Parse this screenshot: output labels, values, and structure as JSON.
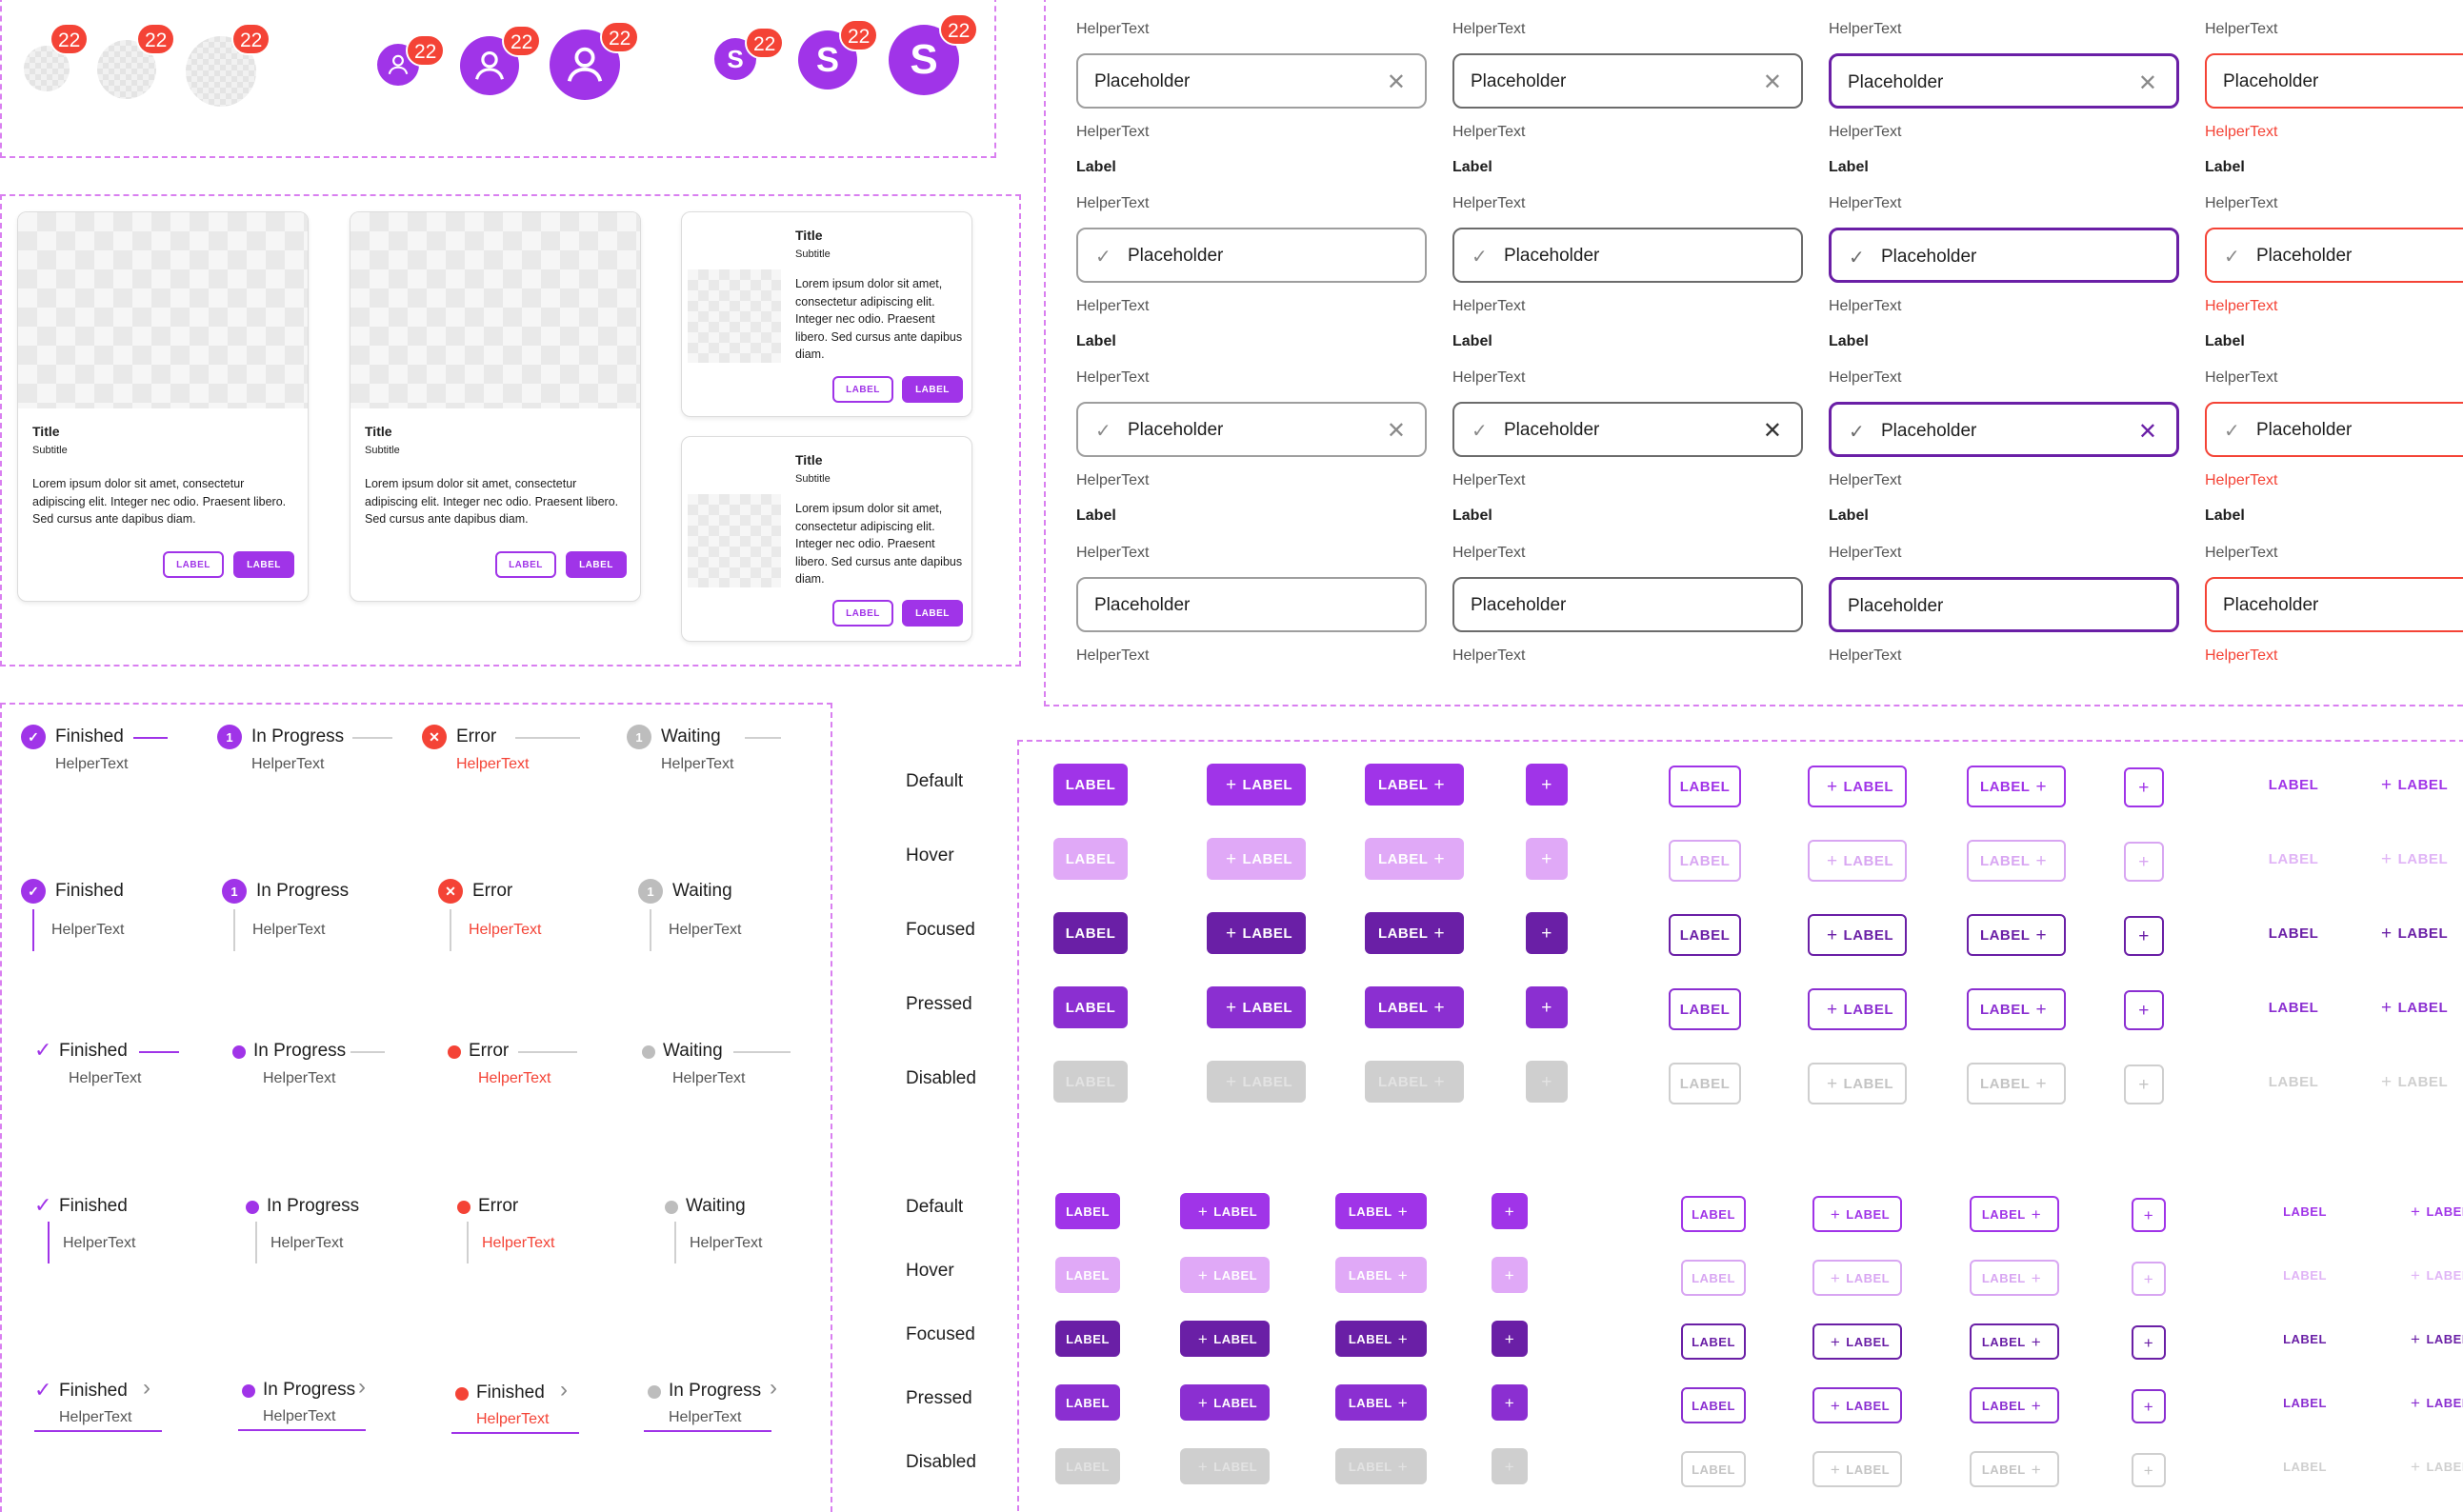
{
  "avatars": {
    "badge": "22",
    "initial": "S"
  },
  "cards": {
    "title": "Title",
    "subtitle": "Subtitle",
    "body": "Lorem ipsum dolor sit amet, consectetur adipiscing elit. Integer nec odio. Praesent libero. Sed cursus ante dapibus diam.",
    "outline_label": "LABEL",
    "filled_label": "LABEL"
  },
  "textfields": {
    "helper": "HelperText",
    "label": "Label",
    "placeholder": "Placeholder"
  },
  "steppers": {
    "finished": "Finished",
    "in_progress": "In Progress",
    "error": "Error",
    "waiting": "Waiting",
    "helper": "HelperText",
    "step_number": "1"
  },
  "buttons": {
    "label": "LABEL",
    "plus": "+",
    "states": [
      "Default",
      "Hover",
      "Focused",
      "Pressed",
      "Disabled"
    ]
  },
  "colors": {
    "primary": "#a034e8",
    "primary_hover": "#e0a9f7",
    "primary_focused": "#6a1fa6",
    "primary_pressed": "#8b2fd1",
    "disabled": "#cfcfcf",
    "error": "#f44336",
    "waiting": "#bdbdbd",
    "outline_hover": "#d8a6f2"
  }
}
